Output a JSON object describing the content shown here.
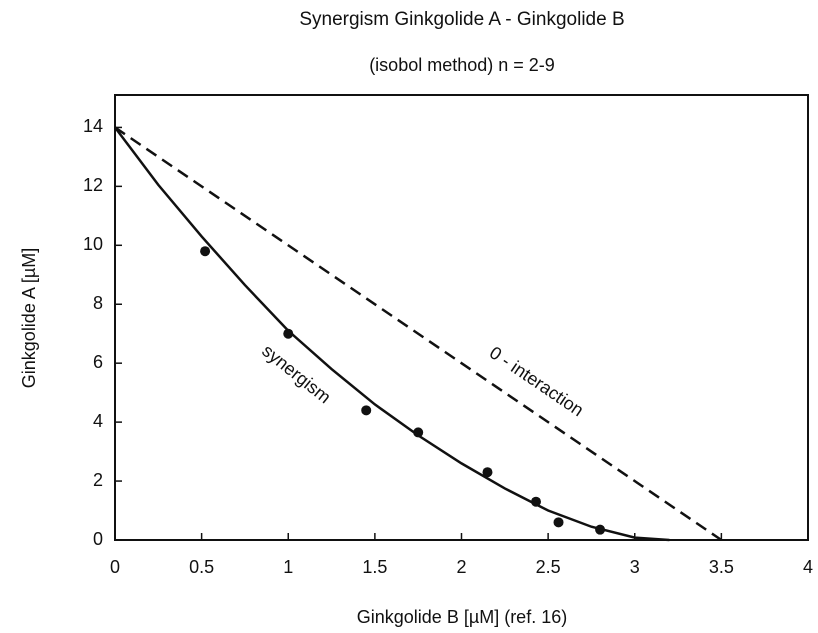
{
  "chart_data": {
    "type": "line",
    "title": "Synergism Ginkgolide A - Ginkgolide B",
    "subtitle": "(isobol method)  n  =  2-9",
    "xlabel": "Ginkgolide B  [µM]    (ref. 16)",
    "ylabel": "Ginkgolide A  [µM]",
    "xlim": [
      0,
      4
    ],
    "ylim": [
      0,
      15.1
    ],
    "xticks": [
      0,
      0.5,
      1,
      1.5,
      2,
      2.5,
      3,
      3.5,
      4
    ],
    "yticks": [
      0,
      2,
      4,
      6,
      8,
      10,
      12,
      14
    ],
    "grid": false,
    "series": [
      {
        "name": "synergism",
        "color": "#111111",
        "dashed": false,
        "x": [
          0,
          0.25,
          0.5,
          0.75,
          1,
          1.25,
          1.5,
          1.75,
          2,
          2.25,
          2.5,
          2.75,
          3,
          3.2
        ],
        "values": [
          14,
          12.05,
          10.3,
          8.65,
          7.1,
          5.8,
          4.6,
          3.55,
          2.6,
          1.75,
          1.0,
          0.45,
          0.08,
          0
        ]
      },
      {
        "name": "0 - interaction",
        "color": "#111111",
        "dashed": true,
        "x": [
          0,
          3.5
        ],
        "values": [
          14,
          0
        ]
      }
    ],
    "scatter": {
      "color": "#111111",
      "x": [
        0.52,
        1.0,
        1.45,
        1.75,
        2.15,
        2.43,
        2.56,
        2.8
      ],
      "values": [
        9.8,
        7.0,
        4.4,
        3.65,
        2.3,
        1.3,
        0.6,
        0.35
      ]
    }
  }
}
